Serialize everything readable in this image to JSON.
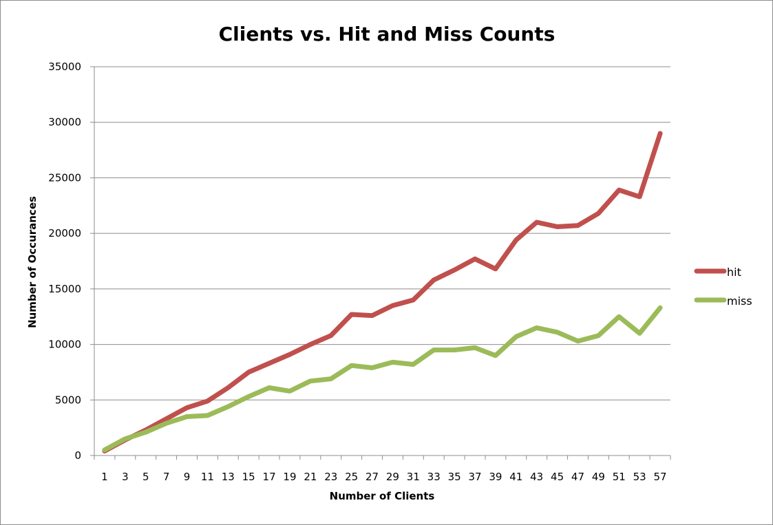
{
  "chart_data": {
    "type": "line",
    "title": "Clients vs. Hit and Miss Counts",
    "xlabel": "Number of Clients",
    "ylabel": "Number of Occurances",
    "categories": [
      "1",
      "3",
      "5",
      "7",
      "9",
      "11",
      "13",
      "15",
      "17",
      "19",
      "21",
      "23",
      "25",
      "27",
      "29",
      "31",
      "33",
      "35",
      "37",
      "39",
      "41",
      "43",
      "45",
      "47",
      "49",
      "51",
      "53",
      "57"
    ],
    "ylim": [
      0,
      35000
    ],
    "yticks": [
      "0",
      "5000",
      "10000",
      "15000",
      "20000",
      "25000",
      "30000",
      "35000"
    ],
    "grid": true,
    "legend_position": "right",
    "series": [
      {
        "name": "hit",
        "color": "#c0504d",
        "values": [
          400,
          1400,
          2300,
          3300,
          4300,
          4900,
          6100,
          7500,
          8300,
          9100,
          10000,
          10800,
          12700,
          12600,
          13500,
          14000,
          15800,
          16700,
          17700,
          16800,
          19400,
          21000,
          20600,
          20700,
          21800,
          23900,
          23300,
          29000
        ]
      },
      {
        "name": "miss",
        "color": "#9bbb59",
        "values": [
          500,
          1500,
          2100,
          2900,
          3500,
          3600,
          4400,
          5300,
          6100,
          5800,
          6700,
          6900,
          8100,
          7900,
          8400,
          8200,
          9500,
          9500,
          9700,
          9000,
          10700,
          11500,
          11100,
          10300,
          10800,
          12500,
          11000,
          13300
        ]
      }
    ]
  }
}
